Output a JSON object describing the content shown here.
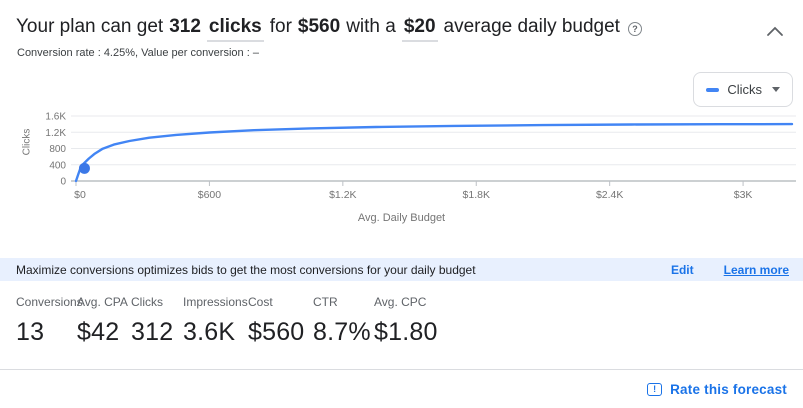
{
  "header": {
    "prefix": "Your plan can get",
    "clicks_value": "312",
    "clicks_unit": "clicks",
    "for_word": "for",
    "cost_value": "$560",
    "with_words": "with a",
    "budget_value": "$20",
    "suffix": "average daily budget",
    "help_glyph": "?"
  },
  "subheader": {
    "text": "Conversion rate : 4.25%, Value per conversion : –"
  },
  "legend_dropdown": {
    "label": "Clicks"
  },
  "chart_data": {
    "type": "line",
    "title": "",
    "xlabel": "Avg. Daily Budget",
    "ylabel": "Clicks",
    "xlim": [
      0,
      3220
    ],
    "ylim": [
      0,
      1700
    ],
    "grid": true,
    "legend_position": "top-right",
    "x_ticks": [
      {
        "value": 0,
        "label": "$0"
      },
      {
        "value": 600,
        "label": "$600"
      },
      {
        "value": 1200,
        "label": "$1.2K"
      },
      {
        "value": 1800,
        "label": "$1.8K"
      },
      {
        "value": 2400,
        "label": "$2.4K"
      },
      {
        "value": 3000,
        "label": "$3K"
      }
    ],
    "y_ticks": [
      {
        "value": 0,
        "label": "0"
      },
      {
        "value": 400,
        "label": "400"
      },
      {
        "value": 800,
        "label": "800"
      },
      {
        "value": 1200,
        "label": "1.2K"
      },
      {
        "value": 1600,
        "label": "1.6K"
      }
    ],
    "series": [
      {
        "name": "Clicks",
        "color": "#4285f4",
        "x": [
          0,
          10,
          20,
          35,
          58,
          85,
          120,
          170,
          240,
          330,
          450,
          600,
          800,
          1050,
          1350,
          1700,
          2100,
          2500,
          2900,
          3220
        ],
        "y": [
          0,
          160,
          312,
          430,
          555,
          675,
          795,
          895,
          985,
          1065,
          1135,
          1195,
          1250,
          1295,
          1330,
          1357,
          1377,
          1390,
          1397,
          1400
        ]
      }
    ],
    "marker": {
      "x": 20,
      "y": 312,
      "color": "#3b78e7",
      "meaning": "current plan: $20 daily budget, 312 clicks"
    }
  },
  "info_bar": {
    "message": "Maximize conversions optimizes bids to get the most conversions for your daily budget",
    "edit_label": "Edit",
    "learn_more_label": "Learn more"
  },
  "metrics": {
    "items": [
      {
        "label": "Conversions",
        "value": "13"
      },
      {
        "label": "Avg. CPA",
        "value": "$42"
      },
      {
        "label": "Clicks",
        "value": "312"
      },
      {
        "label": "Impressions",
        "value": "3.6K"
      },
      {
        "label": "Cost",
        "value": "$560"
      },
      {
        "label": "CTR",
        "value": "8.7%"
      },
      {
        "label": "Avg. CPC",
        "value": "$1.80"
      }
    ]
  },
  "footer": {
    "rate_label": "Rate this forecast",
    "feedback_glyph": "!"
  },
  "colors": {
    "line_blue": "#4285f4",
    "marker_blue": "#3b78e7",
    "link_blue": "#1a73e8",
    "info_bar_bg": "#e8f0fe",
    "gridline": "#e8eaed",
    "axis_line": "#9aa0a6",
    "tick_text": "#757575"
  }
}
